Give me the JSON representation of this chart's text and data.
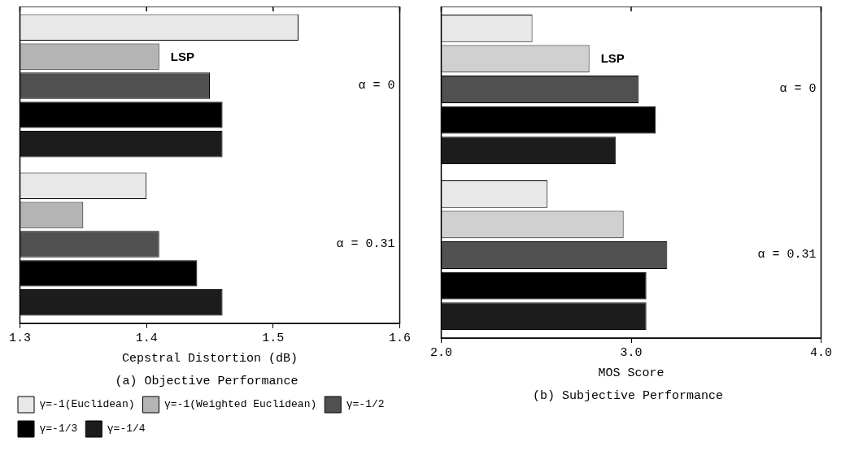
{
  "chart_data": [
    {
      "type": "bar",
      "orientation": "horizontal",
      "title": "(a) Objective Performance",
      "xlabel": "Cepstral Distortion (dB)",
      "categories": [
        null,
        null
      ],
      "series": [
        {
          "name": "γ=-1(Euclidean)",
          "color": "#e8e8e8",
          "values": [
            1.52,
            1.4
          ]
        },
        {
          "name": "γ=-1(Weighted Euclidean)",
          "color": "#b4b4b4",
          "values": [
            1.41,
            1.35
          ]
        },
        {
          "name": "γ=-1/2",
          "color": "#505050",
          "values": [
            1.45,
            1.41
          ]
        },
        {
          "name": "γ=-1/3",
          "color": "#000000",
          "values": [
            1.46,
            1.44
          ]
        },
        {
          "name": "γ=-1/4",
          "color": "#1c1c1c",
          "values": [
            1.46,
            1.46
          ]
        }
      ],
      "xlim": [
        1.3,
        1.6
      ],
      "xticks": [
        1.3,
        1.4,
        1.5,
        1.6
      ],
      "grid": false,
      "legend": "bottom",
      "annotations": [
        "LSP",
        "α = 0",
        "α = 0.31"
      ]
    },
    {
      "type": "bar",
      "orientation": "horizontal",
      "title": "(b) Subjective Performance",
      "xlabel": "MOS Score",
      "categories": [
        null,
        null
      ],
      "series": [
        {
          "color": "#e8e8e8",
          "values": [
            2.48,
            2.56
          ]
        },
        {
          "color": "#d0d0d0",
          "values": [
            2.78,
            2.96
          ]
        },
        {
          "color": "#505050",
          "values": [
            3.04,
            3.19
          ]
        },
        {
          "color": "#000000",
          "values": [
            3.13,
            3.08
          ]
        },
        {
          "color": "#1c1c1c",
          "values": [
            2.92,
            3.08
          ]
        }
      ],
      "xlim": [
        2.0,
        4.0
      ],
      "xticks": [
        {
          "value": 2.0,
          "label": "2.0"
        },
        {
          "value": 3.0,
          "label": "3.0"
        },
        {
          "value": 4.0,
          "label": "4.0"
        }
      ],
      "grid": false,
      "annotations": [
        "LSP",
        "α = 0",
        "α = 0.31"
      ]
    }
  ]
}
